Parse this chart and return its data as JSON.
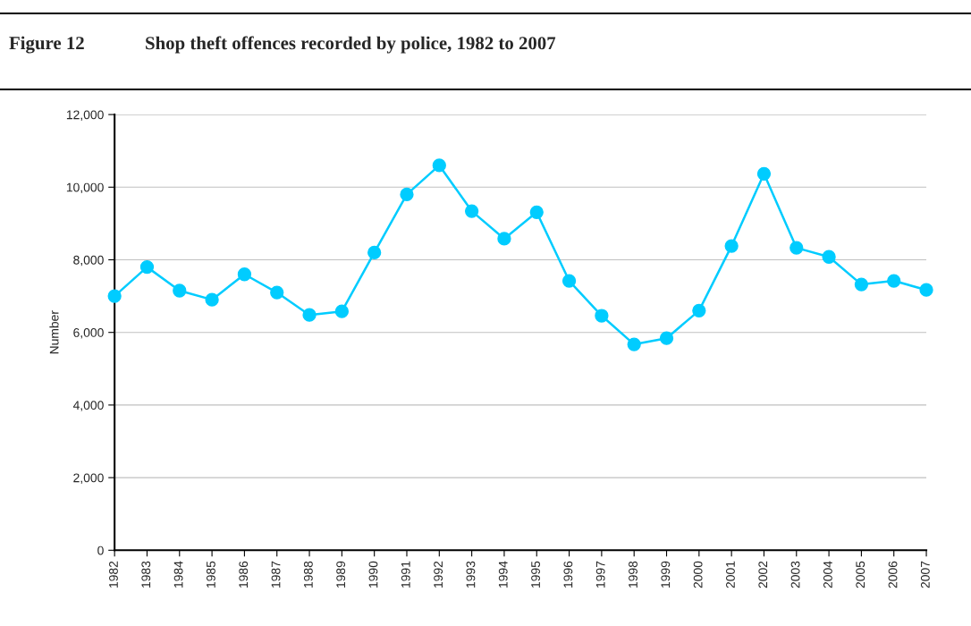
{
  "chart_data": {
    "type": "line",
    "title": "Figure 12",
    "subtitle": "Shop theft offences recorded by police, 1982 to 2007",
    "ylabel": "Number",
    "categories": [
      "1982",
      "1983",
      "1984",
      "1985",
      "1986",
      "1987",
      "1988",
      "1989",
      "1990",
      "1991",
      "1992",
      "1993",
      "1994",
      "1995",
      "1996",
      "1997",
      "1998",
      "1999",
      "2000",
      "2001",
      "2002",
      "2003",
      "2004",
      "2005",
      "2006",
      "2007"
    ],
    "series": [
      {
        "color": "#00ccff",
        "values": [
          7000,
          7800,
          7150,
          6900,
          7600,
          7100,
          6480,
          6580,
          8200,
          9800,
          10600,
          9340,
          8580,
          9310,
          7420,
          6460,
          5670,
          5840,
          6600,
          8380,
          10370,
          8330,
          8080,
          7320,
          7420,
          7170
        ]
      }
    ],
    "ylim": [
      0,
      12000
    ],
    "yticks": [
      {
        "value": 0,
        "label": "0"
      },
      {
        "value": 2000,
        "label": "2,000"
      },
      {
        "value": 4000,
        "label": "4,000"
      },
      {
        "value": 6000,
        "label": "6,000"
      },
      {
        "value": 8000,
        "label": "8,000"
      },
      {
        "value": 10000,
        "label": "10,000"
      },
      {
        "value": 12000,
        "label": "12,000"
      }
    ],
    "grid": "y",
    "marker": "circle",
    "line_style": "solid",
    "legend": false
  }
}
